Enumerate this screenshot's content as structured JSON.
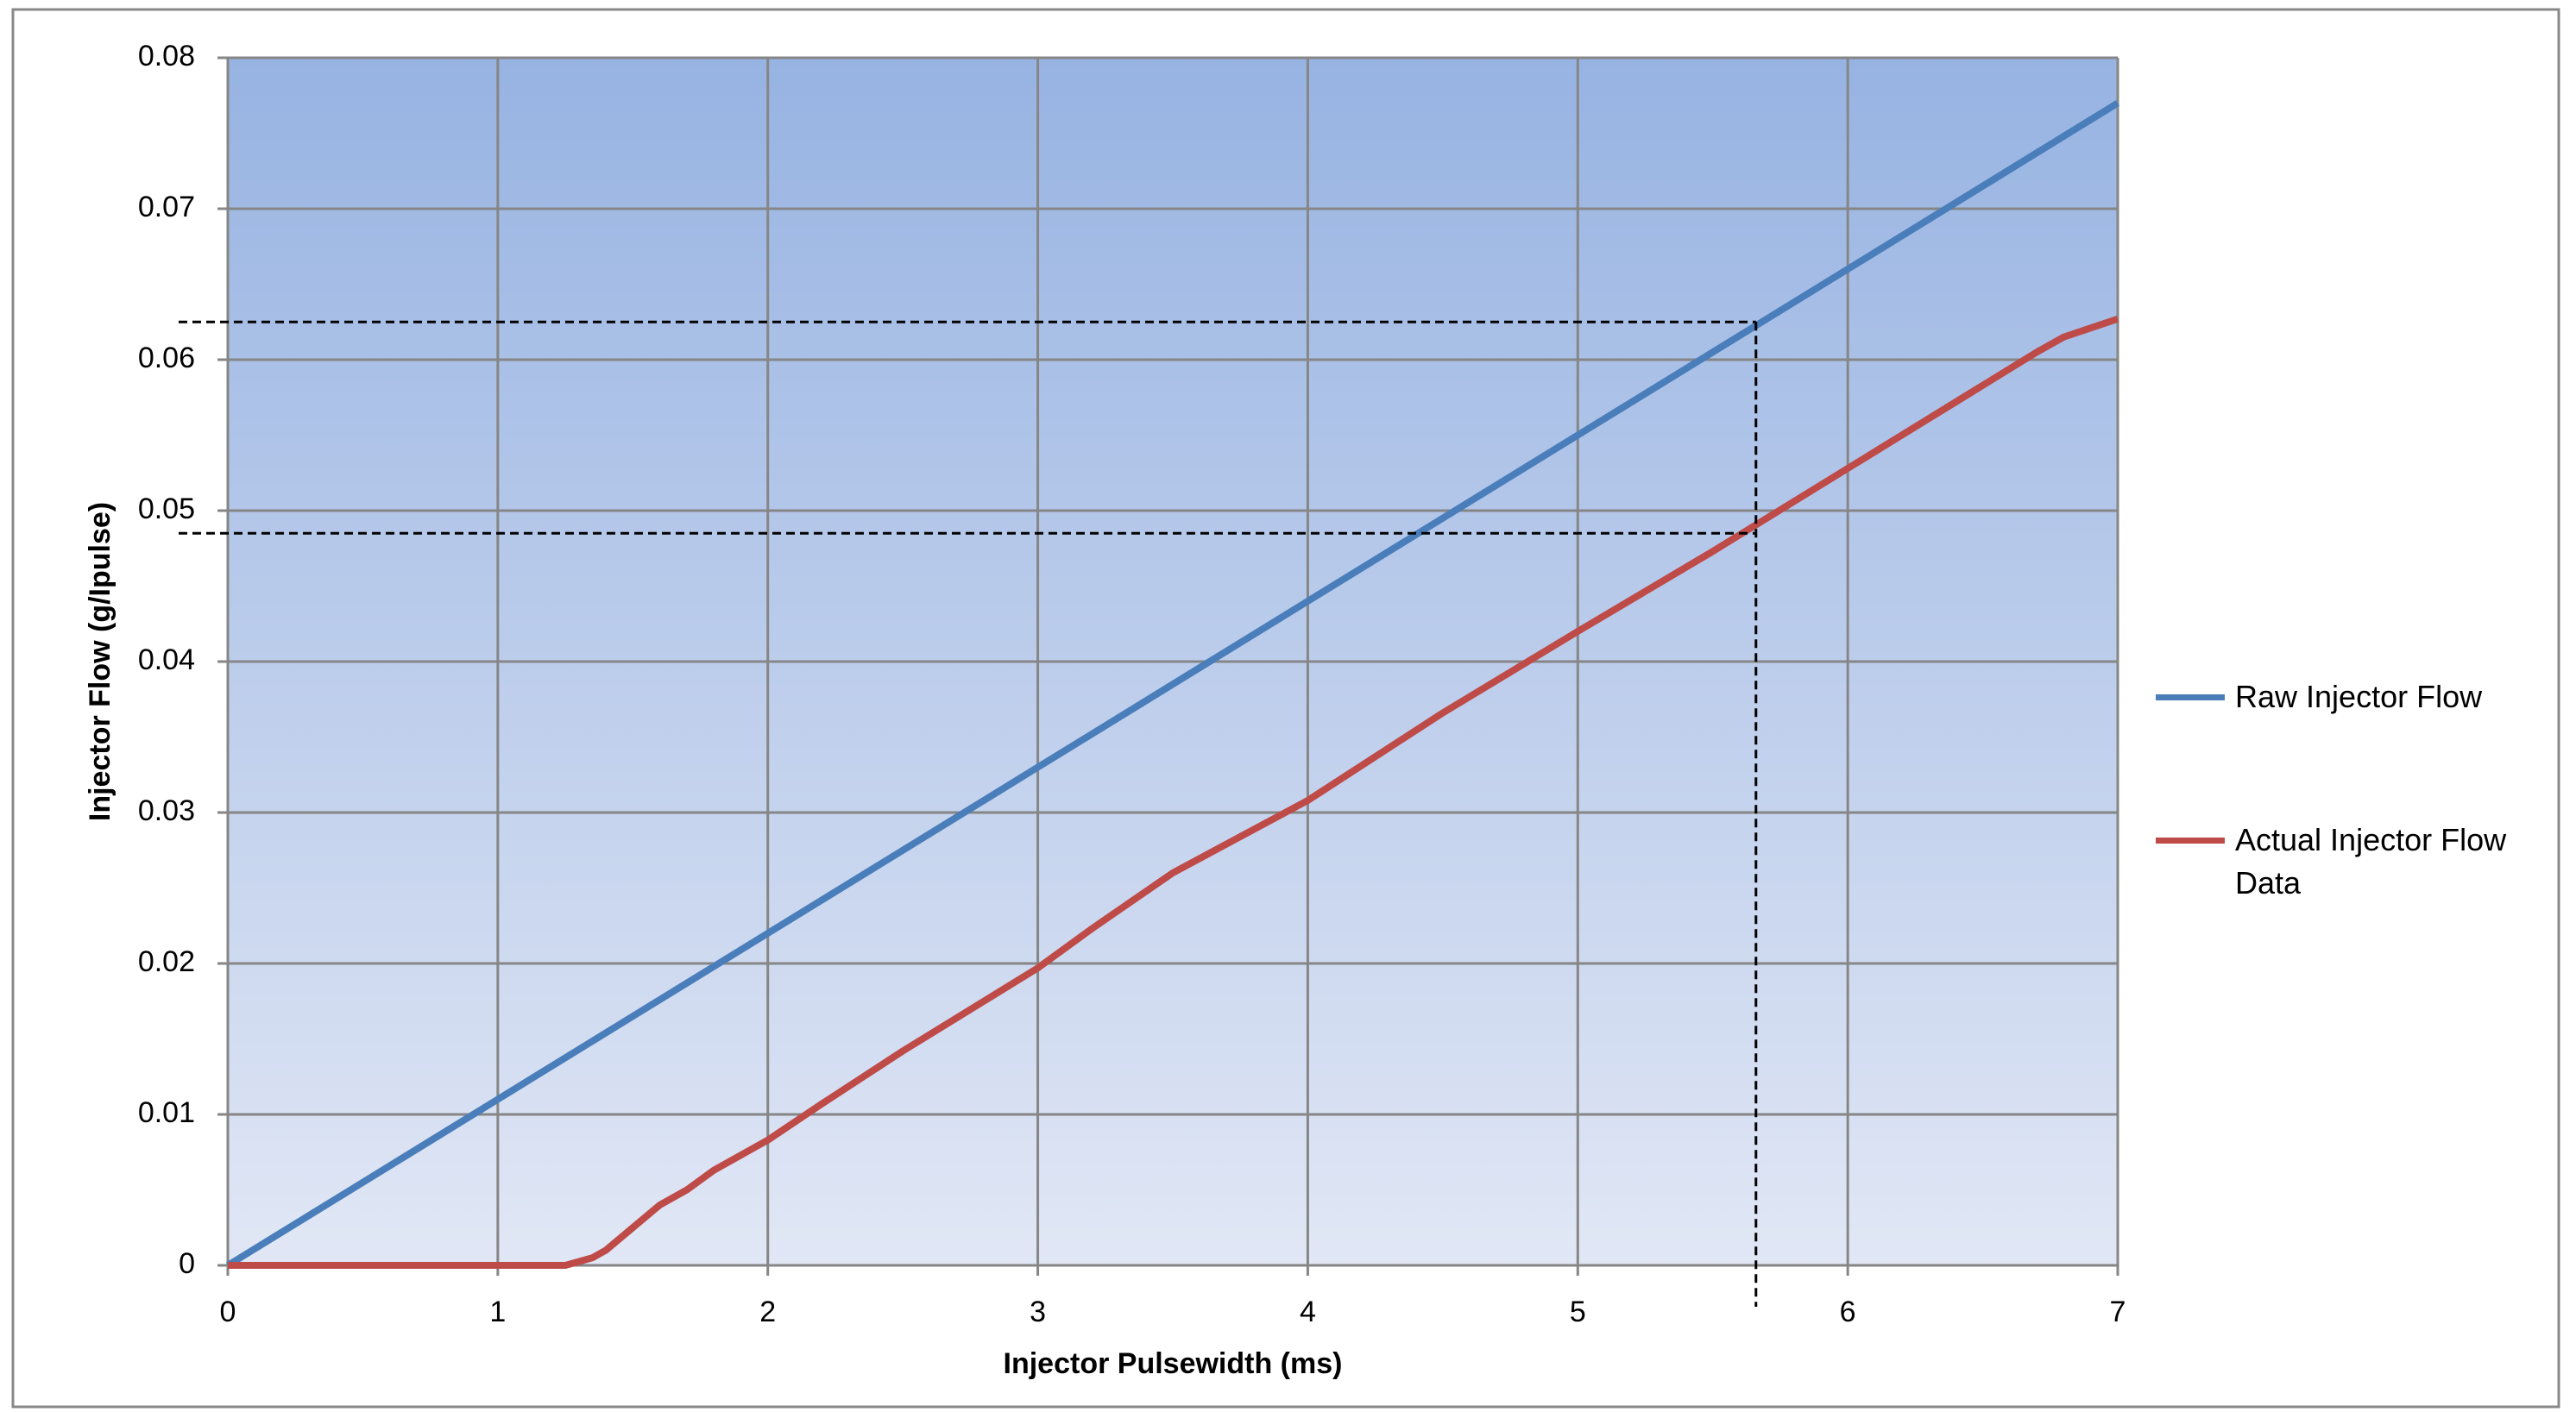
{
  "chart_data": {
    "type": "line",
    "x_label": "Injector Pulsewidth (ms)",
    "y_label": "Injector Flow  (g/Ipulse)",
    "xlim": [
      0,
      7
    ],
    "xticks": [
      0,
      1,
      2,
      3,
      4,
      5,
      6,
      7
    ],
    "ylim": [
      0,
      0.08
    ],
    "yticks": [
      0,
      0.01,
      0.02,
      0.03,
      0.04,
      0.05,
      0.06,
      0.07,
      0.08
    ],
    "grid": true,
    "legend": "right",
    "series": [
      {
        "name": "Raw Injector Flow",
        "color": "#4a7ebb",
        "x": [
          0,
          1,
          2,
          3,
          4,
          5,
          6,
          7
        ],
        "values": [
          0,
          0.011,
          0.022,
          0.033,
          0.044,
          0.055,
          0.066,
          0.077
        ]
      },
      {
        "name": "Actual Injector Flow Data",
        "color": "#be4b48",
        "x": [
          0,
          1.25,
          1.35,
          1.4,
          1.5,
          1.6,
          1.7,
          1.8,
          2,
          2.2,
          2.5,
          3,
          3.1,
          3.2,
          3.5,
          4,
          4.5,
          5,
          5.5,
          6,
          6.5,
          6.7,
          6.8,
          7
        ],
        "values": [
          0,
          0,
          0.0005,
          0.001,
          0.0025,
          0.004,
          0.005,
          0.0063,
          0.0083,
          0.0107,
          0.0142,
          0.0197,
          0.021,
          0.0223,
          0.026,
          0.0308,
          0.0366,
          0.042,
          0.0473,
          0.0528,
          0.0583,
          0.0605,
          0.0615,
          0.0627
        ]
      }
    ],
    "reference_lines": {
      "x": 5.66,
      "y": [
        0.0625,
        0.0485
      ]
    }
  }
}
